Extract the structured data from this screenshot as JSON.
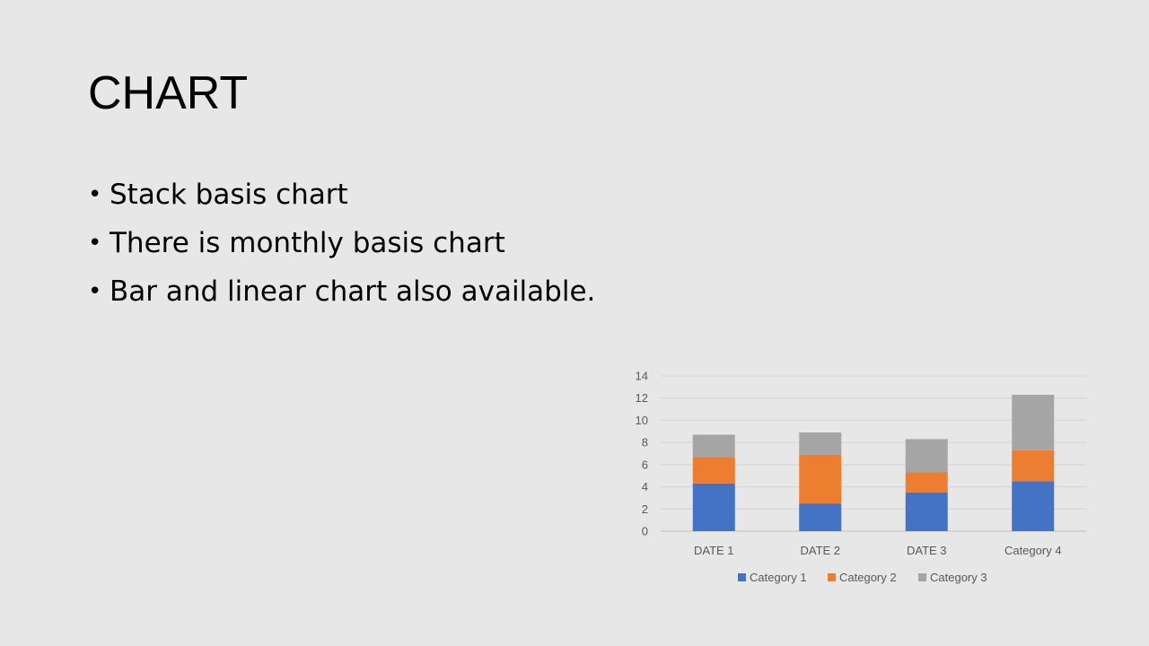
{
  "slide": {
    "title": "CHART",
    "bullets": [
      "Stack basis chart",
      "There is monthly basis chart",
      "Bar and linear chart also available."
    ]
  },
  "chart_data": {
    "type": "bar",
    "stacked": true,
    "categories": [
      "DATE 1",
      "DATE 2",
      "DATE 3",
      "Category 4"
    ],
    "series": [
      {
        "name": "Category 1",
        "values": [
          4.3,
          2.5,
          3.5,
          4.5
        ],
        "color": "#4472c4"
      },
      {
        "name": "Category 2",
        "values": [
          2.4,
          4.4,
          1.8,
          2.8
        ],
        "color": "#ed7d31"
      },
      {
        "name": "Category 3",
        "values": [
          2.0,
          2.0,
          3.0,
          5.0
        ],
        "color": "#a5a5a5"
      }
    ],
    "ylim": [
      0,
      14
    ],
    "yticks": [
      0,
      2,
      4,
      6,
      8,
      10,
      12,
      14
    ],
    "grid": true,
    "legend": "bottom",
    "xlabel": "",
    "ylabel": ""
  }
}
